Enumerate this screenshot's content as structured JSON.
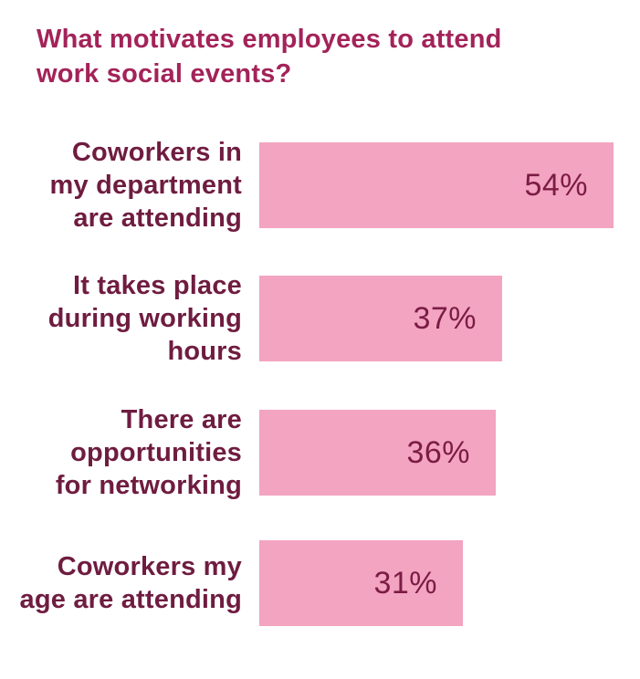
{
  "page": {
    "background_color": "#ffffff"
  },
  "title": {
    "text": "What motivates employees to attend work social events?",
    "lines": [
      "What motivates employees to attend",
      "work social events?"
    ],
    "color": "#a32359"
  },
  "chart_data": {
    "type": "bar",
    "orientation": "horizontal",
    "title": "What motivates employees to attend work social events?",
    "categories": [
      "Coworkers in my department are attending",
      "It takes place during working hours",
      "There are opportunities for networking",
      "Coworkers my age are attending"
    ],
    "category_lines": [
      [
        "Coworkers in",
        "my department",
        "are attending"
      ],
      [
        "It takes place",
        "during working",
        "hours"
      ],
      [
        "There are",
        "opportunities",
        "for networking"
      ],
      [
        "Coworkers my",
        "age are attending"
      ]
    ],
    "values": [
      54,
      37,
      36,
      31
    ],
    "value_labels": [
      "54%",
      "37%",
      "36%",
      "31%"
    ],
    "value_suffix": "%",
    "xlim": [
      0,
      97.5
    ],
    "axis": "none",
    "gridlines": false,
    "legend": "none",
    "value_label_position": "inside-right",
    "bar_color": "#f3a4c1",
    "label_color": "#6f1c40",
    "value_color": "#7b1c45"
  }
}
